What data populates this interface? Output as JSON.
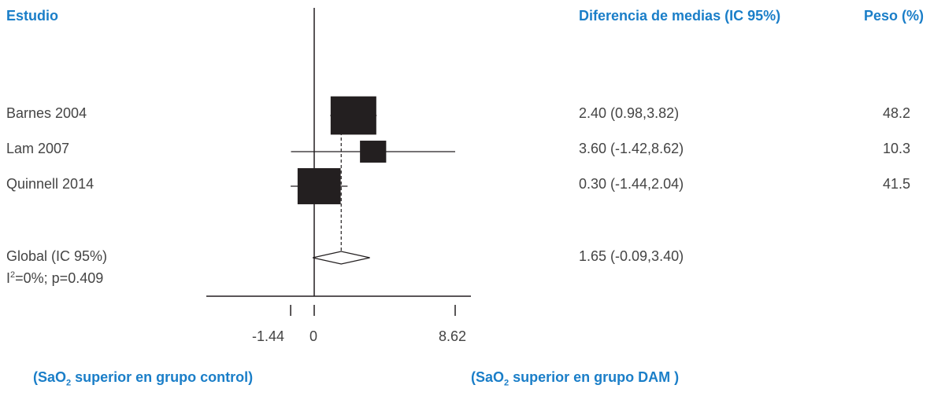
{
  "headers": {
    "study": "Estudio",
    "effect": "Diferencia de medias (IC 95%)",
    "weight": "Peso (%)"
  },
  "chart_data": {
    "type": "forest",
    "xlim": [
      -1.44,
      8.62
    ],
    "xticks": [
      {
        "value": -1.44,
        "label": "-1.44"
      },
      {
        "value": 0,
        "label": "0"
      },
      {
        "value": 8.62,
        "label": "8.62"
      }
    ],
    "studies": [
      {
        "name": "Barnes 2004",
        "mean": 2.4,
        "lower": 0.98,
        "upper": 3.82,
        "ci_text": "2.40 (0.98,3.82)",
        "weight": 48.2,
        "weight_text": "48.2"
      },
      {
        "name": "Lam 2007",
        "mean": 3.6,
        "lower": -1.42,
        "upper": 8.62,
        "ci_text": "3.60 (-1.42,8.62)",
        "weight": 10.3,
        "weight_text": "10.3"
      },
      {
        "name": "Quinnell 2014",
        "mean": 0.3,
        "lower": -1.44,
        "upper": 2.04,
        "ci_text": "0.30 (-1.44,2.04)",
        "weight": 41.5,
        "weight_text": "41.5"
      }
    ],
    "overall": {
      "name": "Global (IC 95%)",
      "mean": 1.65,
      "lower": -0.09,
      "upper": 3.4,
      "ci_text": "1.65 (-0.09,3.40)",
      "heterogeneity_prefix": "I",
      "heterogeneity_sup": "2",
      "heterogeneity_rest": "=0%; p=0.409"
    },
    "footer_left": {
      "pre": "(SaO",
      "sub": "2",
      "post": " superior en grupo control)"
    },
    "footer_right": {
      "pre": "(SaO",
      "sub": "2",
      "post": " superior en grupo DAM )"
    }
  },
  "colors": {
    "header": "#1a7ec8",
    "marker": "#231f20",
    "line": "#231f20",
    "text": "#444444"
  }
}
